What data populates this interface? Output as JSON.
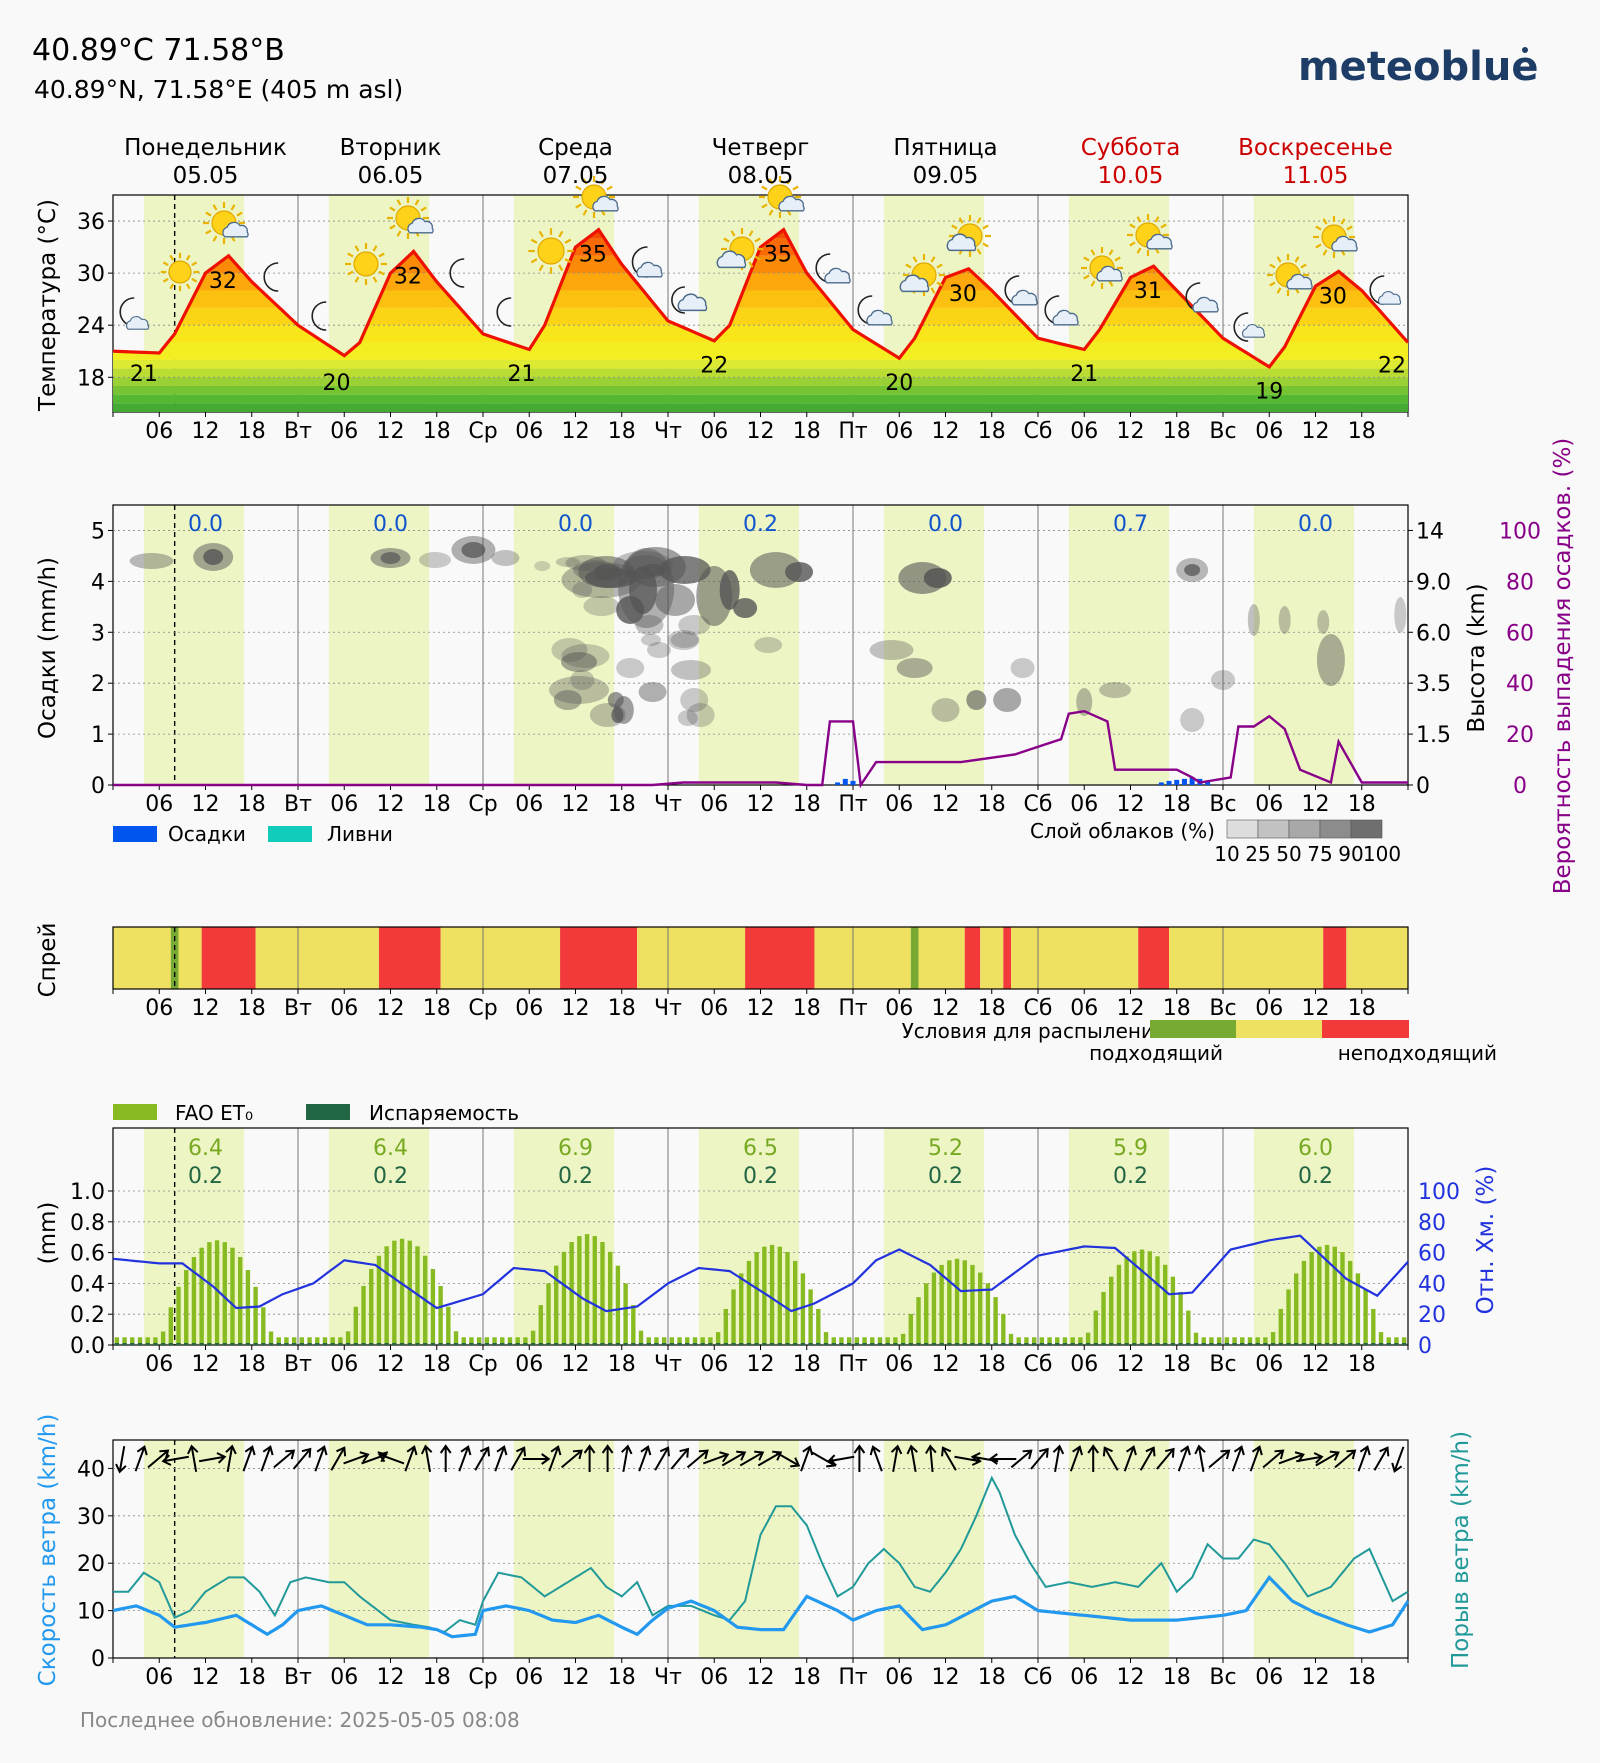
{
  "header": {
    "title": "40.89°C 71.58°В",
    "subtitle": "40.89°N, 71.58°E (405 m asl)",
    "brand": "meteoblue"
  },
  "days": [
    {
      "name": "Понедельник",
      "date": "05.05",
      "short": "",
      "weekend": false
    },
    {
      "name": "Вторник",
      "date": "06.05",
      "short": "Вт",
      "weekend": false
    },
    {
      "name": "Среда",
      "date": "07.05",
      "short": "Ср",
      "weekend": false
    },
    {
      "name": "Четверг",
      "date": "08.05",
      "short": "Чт",
      "weekend": false
    },
    {
      "name": "Пятница",
      "date": "09.05",
      "short": "Пт",
      "weekend": false
    },
    {
      "name": "Суббота",
      "date": "10.05",
      "short": "Сб",
      "weekend": true
    },
    {
      "name": "Воскресенье",
      "date": "11.05",
      "short": "Вс",
      "weekend": true
    }
  ],
  "hour_ticks": [
    "06",
    "12",
    "18"
  ],
  "colors": {
    "weekend": "#cc0000",
    "daylight": "#eef5c4",
    "temp_line": "#ee1100",
    "precip": "#0055ee",
    "showers": "#11ccbb",
    "precip_prob": "#880088",
    "et0": "#88bb22",
    "evap": "#226644",
    "humidity": "#2233dd",
    "wind": "#2299ee",
    "gust": "#229999",
    "spray_good": "#77aa33",
    "spray_mid": "#eee060",
    "spray_bad": "#f23a3a"
  },
  "labels": {
    "temp_axis": "Температура (°C)",
    "precip_axis": "Осадки (mm/h)",
    "height_axis": "Высота (km)",
    "prob_axis": "Вероятность выпадения осадков. (%)",
    "legend_precip": "Осадки",
    "legend_showers": "Ливни",
    "cloud_layer": "Слой облаков (%)",
    "cloud_scale": [
      "10",
      "25",
      "50",
      "75",
      "90",
      "100"
    ],
    "spray_axis": "Спрей",
    "spray_title": "Условия для распыления",
    "spray_good": "подходящий",
    "spray_bad": "неподходящий",
    "legend_fao": "FAO ET₀",
    "legend_evap": "Испаряемость",
    "mm_axis": "(mm)",
    "rh_axis": "Отн. Хм. (%)",
    "wind_axis": "Скорость ветра (km/h)",
    "gust_axis": "Порыв ветра (km/h)",
    "footer": "Последнее обновление: 2025-05-05 08:08"
  },
  "chart_data": [
    {
      "type": "line",
      "name": "temperature",
      "ylim": [
        14,
        39
      ],
      "yticks": [
        18,
        24,
        30,
        36
      ],
      "x_hours": [
        0,
        6,
        8,
        12,
        15,
        18,
        24,
        30,
        32,
        36,
        39,
        42,
        48,
        54,
        56,
        60,
        63,
        66,
        72,
        78,
        80,
        84,
        87,
        90,
        96,
        102,
        104,
        108,
        111,
        114,
        120,
        126,
        128,
        132,
        135,
        138,
        144,
        150,
        152,
        156,
        159,
        162,
        168
      ],
      "values": [
        21,
        20.8,
        23,
        30,
        32,
        29,
        24,
        20.5,
        22,
        30,
        32.5,
        29,
        23,
        21.2,
        24,
        33,
        35,
        31,
        24.5,
        22.2,
        24,
        33,
        35,
        30,
        23.5,
        20.2,
        22.5,
        29.5,
        30.5,
        28,
        22.5,
        21.2,
        23.5,
        29.5,
        30.8,
        28,
        22.5,
        19.2,
        21.5,
        28.5,
        30.2,
        28,
        22
      ],
      "min_labels": [
        "21",
        "20",
        "21",
        "22",
        "20",
        "21",
        "19",
        "22"
      ],
      "max_labels": [
        "32",
        "32",
        "35",
        "35",
        "30",
        "31",
        "30"
      ]
    },
    {
      "type": "bar",
      "name": "precipitation",
      "ylim": [
        0,
        5.5
      ],
      "yticks": [
        0,
        1,
        2,
        3,
        4,
        5
      ],
      "height_ticks": [
        "14",
        "9.0",
        "6.0",
        "3.5",
        "1.5",
        "0"
      ],
      "prob_ticks": [
        "100",
        "80",
        "60",
        "40",
        "20",
        "0"
      ],
      "daily_totals": [
        "0.0",
        "0.0",
        "0.0",
        "0.2",
        "0.0",
        "0.7",
        "0.0"
      ],
      "precip_bars": [
        [
          94,
          0.05
        ],
        [
          95,
          0.12
        ],
        [
          96,
          0.08
        ],
        [
          136,
          0.05
        ],
        [
          137,
          0.08
        ],
        [
          138,
          0.1
        ],
        [
          139,
          0.12
        ],
        [
          140,
          0.15
        ],
        [
          141,
          0.12
        ],
        [
          142,
          0.08
        ]
      ],
      "probability_hours": [
        0,
        70,
        74,
        86,
        90,
        92,
        93,
        95,
        96,
        97,
        99,
        110,
        117,
        118,
        123,
        124,
        126,
        129,
        130,
        131,
        138,
        140,
        141,
        145,
        146,
        148,
        150,
        152,
        154,
        158,
        159,
        162,
        168
      ],
      "probability_values": [
        0,
        0,
        1,
        1,
        0,
        0,
        25,
        25,
        25,
        0,
        9,
        9,
        12,
        13,
        18,
        28,
        29,
        25,
        6,
        6,
        6,
        3,
        1,
        3,
        23,
        23,
        27,
        22,
        6,
        1,
        17,
        1,
        1
      ]
    },
    {
      "type": "table",
      "name": "spray",
      "segments": [
        [
          0,
          7.5,
          "mid"
        ],
        [
          7.5,
          8.5,
          "good"
        ],
        [
          8.5,
          11.5,
          "mid"
        ],
        [
          11.5,
          18.5,
          "bad"
        ],
        [
          18.5,
          34.5,
          "mid"
        ],
        [
          34.5,
          42.5,
          "bad"
        ],
        [
          42.5,
          58,
          "mid"
        ],
        [
          58,
          68,
          "bad"
        ],
        [
          68,
          82,
          "mid"
        ],
        [
          82,
          91,
          "bad"
        ],
        [
          91,
          103.5,
          "mid"
        ],
        [
          103.5,
          104.5,
          "good"
        ],
        [
          104.5,
          110.5,
          "mid"
        ],
        [
          110.5,
          112.5,
          "bad"
        ],
        [
          112.5,
          115.5,
          "mid"
        ],
        [
          115.5,
          116.5,
          "bad"
        ],
        [
          116.5,
          133,
          "mid"
        ],
        [
          133,
          137,
          "bad"
        ],
        [
          137,
          157,
          "mid"
        ],
        [
          157,
          160,
          "bad"
        ],
        [
          160,
          168,
          "mid"
        ]
      ]
    },
    {
      "type": "bar",
      "name": "evapotranspiration",
      "ylim": [
        0,
        1.0
      ],
      "yticks": [
        "0.0",
        "0.2",
        "0.4",
        "0.6",
        "0.8",
        "1.0"
      ],
      "rh_ticks": [
        "0",
        "20",
        "40",
        "60",
        "80",
        "100"
      ],
      "daily_et0": [
        "6.4",
        "6.4",
        "6.9",
        "6.5",
        "5.2",
        "5.9",
        "6.0"
      ],
      "daily_evap": [
        "0.2",
        "0.2",
        "0.2",
        "0.2",
        "0.2",
        "0.2",
        "0.2"
      ],
      "et0_peaks": [
        0.68,
        0.69,
        0.72,
        0.65,
        0.56,
        0.62,
        0.65
      ],
      "humidity_hours": [
        0,
        6,
        9,
        13,
        16,
        19,
        22,
        26,
        30,
        34,
        38,
        42,
        48,
        52,
        56,
        61,
        64,
        68,
        72,
        76,
        80,
        85,
        88,
        91,
        96,
        99,
        102,
        106,
        110,
        114,
        120,
        126,
        130,
        134,
        137,
        140,
        145,
        150,
        154,
        160,
        164,
        168
      ],
      "humidity_values": [
        56,
        53,
        53,
        38,
        24,
        25,
        33,
        40,
        55,
        52,
        38,
        24,
        33,
        50,
        48,
        30,
        22,
        25,
        40,
        50,
        48,
        32,
        22,
        27,
        40,
        55,
        62,
        52,
        35,
        36,
        58,
        64,
        63,
        46,
        33,
        34,
        62,
        68,
        71,
        43,
        32,
        54
      ]
    },
    {
      "type": "line",
      "name": "wind",
      "ylim": [
        0,
        46
      ],
      "yticks": [
        0,
        10,
        20,
        30,
        40
      ],
      "series": [
        {
          "name": "wind_speed",
          "hours": [
            0,
            3,
            6,
            8,
            12,
            16,
            18,
            20,
            22,
            24,
            27,
            30,
            33,
            36,
            40,
            42,
            44,
            47,
            48,
            51,
            54,
            57,
            60,
            63,
            66,
            68,
            70,
            72,
            75,
            78,
            81,
            84,
            87,
            90,
            94,
            96,
            99,
            102,
            105,
            108,
            111,
            114,
            117,
            120,
            126,
            132,
            138,
            144,
            147,
            150,
            153,
            156,
            160,
            163,
            166,
            168
          ],
          "values": [
            10,
            11,
            9,
            6.5,
            7.5,
            9,
            7,
            5,
            7,
            10,
            11,
            9,
            7,
            7,
            6.5,
            6,
            4.5,
            5,
            10,
            11,
            10,
            8,
            7.5,
            9,
            6.5,
            5,
            8,
            10.5,
            12,
            10,
            6.5,
            6,
            6,
            13,
            10,
            8,
            10,
            11,
            6,
            7,
            9.5,
            12,
            13,
            10,
            9,
            8,
            8,
            9,
            10,
            17,
            12,
            9.5,
            7,
            5.5,
            7,
            12
          ]
        },
        {
          "name": "wind_gust",
          "hours": [
            0,
            2,
            4,
            6,
            8,
            10,
            12,
            15,
            17,
            19,
            21,
            23,
            25,
            28,
            30,
            32,
            34,
            36,
            39,
            41,
            43,
            45,
            47,
            48,
            50,
            53,
            56,
            59,
            62,
            64,
            66,
            68,
            70,
            72,
            75,
            78,
            80,
            82,
            84,
            86,
            88,
            90,
            92,
            94,
            96,
            98,
            100,
            102,
            104,
            106,
            108,
            110,
            112,
            114,
            115,
            117,
            119,
            121,
            124,
            127,
            130,
            133,
            136,
            138,
            140,
            142,
            144,
            146,
            148,
            150,
            152,
            155,
            158,
            161,
            163,
            166,
            168
          ],
          "values": [
            14,
            14,
            18,
            16,
            8.5,
            10,
            14,
            17,
            17,
            14,
            9,
            16,
            17,
            16,
            16,
            13,
            10.5,
            8,
            7,
            6.5,
            5.5,
            8,
            7,
            12,
            18,
            17,
            13,
            16,
            19,
            15,
            13,
            16,
            9,
            11,
            11,
            9,
            8,
            12,
            26,
            32,
            32,
            28,
            20,
            13,
            15,
            20,
            23,
            20,
            15,
            14,
            18,
            23,
            30,
            38,
            35,
            26,
            20,
            15,
            16,
            15,
            16,
            15,
            20,
            14,
            17,
            24,
            21,
            21,
            25,
            24,
            20,
            13,
            15,
            21,
            23,
            12,
            14
          ]
        }
      ],
      "direction_deg": [
        10,
        200,
        230,
        80,
        170,
        260,
        190,
        200,
        200,
        230,
        220,
        200,
        210,
        250,
        250,
        110,
        200,
        170,
        180,
        200,
        210,
        200,
        210,
        270,
        200,
        230,
        180,
        180,
        190,
        200,
        210,
        220,
        230,
        250,
        240,
        240,
        240,
        300,
        200,
        300,
        80,
        180,
        160,
        190,
        170,
        175,
        150,
        280,
        100,
        90,
        230,
        220,
        190,
        200,
        180,
        150,
        200,
        210,
        220,
        200,
        170,
        230,
        200,
        200,
        230,
        250,
        260,
        240,
        230,
        200,
        210,
        20
      ]
    }
  ]
}
